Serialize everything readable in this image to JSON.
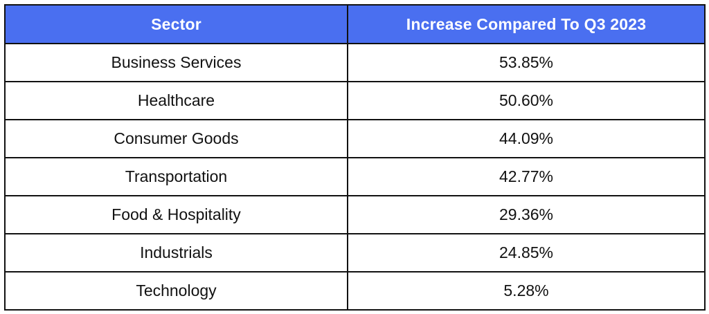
{
  "colors": {
    "header_bg": "#4a6ff0",
    "header_text": "#ffffff",
    "border": "#111111",
    "body_text": "#111111"
  },
  "chart_data": {
    "type": "table",
    "columns": [
      "Sector",
      "Increase Compared To Q3 2023"
    ],
    "rows": [
      [
        "Business Services",
        "53.85%"
      ],
      [
        "Healthcare",
        "50.60%"
      ],
      [
        "Consumer Goods",
        "44.09%"
      ],
      [
        "Transportation",
        "42.77%"
      ],
      [
        "Food & Hospitality",
        "29.36%"
      ],
      [
        "Industrials",
        "24.85%"
      ],
      [
        "Technology",
        "5.28%"
      ]
    ]
  }
}
